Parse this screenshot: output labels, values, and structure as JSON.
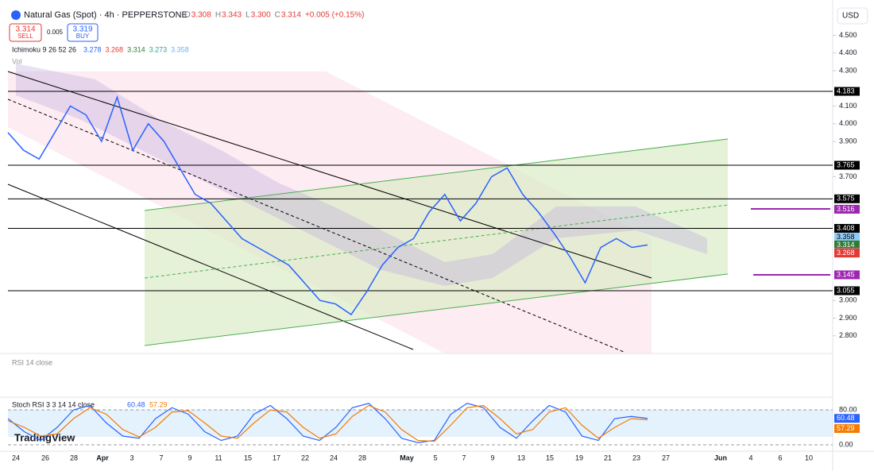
{
  "header": {
    "symbol": "Natural Gas (Spot) · 4h · PEPPERSTONE",
    "ohlc": [
      {
        "k": "O",
        "v": "3.308"
      },
      {
        "k": "H",
        "v": "3.343"
      },
      {
        "k": "L",
        "v": "3.300"
      },
      {
        "k": "C",
        "v": "3.314"
      }
    ],
    "change": "+0.005 (+0.15%)",
    "sell": {
      "price": "3.314",
      "label": "SELL"
    },
    "spread": "0.005",
    "buy": {
      "price": "3.319",
      "label": "BUY"
    },
    "ichimoku": {
      "name": "Ichimoku 9 26 52 26",
      "values": [
        {
          "text": "3.278",
          "color": "#2962ff"
        },
        {
          "text": "3.268",
          "color": "#e53935"
        },
        {
          "text": "3.314",
          "color": "#2e7d32"
        },
        {
          "text": "3.273",
          "color": "#26a69a"
        },
        {
          "text": "3.358",
          "color": "#64b5f6"
        }
      ]
    },
    "vol": "Vol",
    "currency": "USD"
  },
  "price_chart": {
    "type": "line",
    "color": "#2962ff",
    "closes": [
      3.95,
      3.85,
      3.8,
      3.95,
      4.1,
      4.05,
      3.9,
      4.15,
      3.85,
      4.0,
      3.9,
      3.75,
      3.6,
      3.55,
      3.45,
      3.35,
      3.3,
      3.25,
      3.2,
      3.1,
      3.0,
      2.98,
      2.92,
      3.05,
      3.2,
      3.3,
      3.35,
      3.5,
      3.6,
      3.45,
      3.55,
      3.7,
      3.75,
      3.6,
      3.5,
      3.38,
      3.25,
      3.1,
      3.3,
      3.35,
      3.3,
      3.314
    ],
    "ylim": [
      2.7,
      4.7
    ],
    "yticks": [
      {
        "value": 4.5,
        "label": "4.500"
      },
      {
        "value": 4.4,
        "label": "4.400"
      },
      {
        "value": 4.3,
        "label": "4.300"
      },
      {
        "value": 4.1,
        "label": "4.100"
      },
      {
        "value": 4.0,
        "label": "4.000"
      },
      {
        "value": 3.9,
        "label": "3.900"
      },
      {
        "value": 3.7,
        "label": "3.700"
      },
      {
        "value": 3.0,
        "label": "3.000"
      },
      {
        "value": 2.9,
        "label": "2.900"
      },
      {
        "value": 2.8,
        "label": "2.800"
      }
    ],
    "levels": [
      {
        "value": 4.183,
        "color": "#000000",
        "line": true
      },
      {
        "value": 3.765,
        "color": "#000000",
        "line": true
      },
      {
        "value": 3.575,
        "color": "#000000",
        "line": true
      },
      {
        "value": 3.516,
        "color": "#9c27b0",
        "line": false
      },
      {
        "value": 3.408,
        "color": "#000000",
        "line": true
      },
      {
        "value": 3.358,
        "color": "#90caf9",
        "line": false
      },
      {
        "value": 3.314,
        "color": "#2e7d32",
        "line": false
      },
      {
        "value": 3.278,
        "color": "#d32f2f",
        "line": false
      },
      {
        "value": 3.273,
        "color": "#888888",
        "line": false
      },
      {
        "value": 3.268,
        "color": "#e53935",
        "line": false
      },
      {
        "value": 3.145,
        "color": "#9c27b0",
        "line": false
      },
      {
        "value": 3.055,
        "color": "#000000",
        "line": true
      }
    ]
  },
  "rsi": "RSI 14 close",
  "stoch": {
    "name": "Stoch RSI 3 3 14 14 close",
    "k_text": "60.48",
    "d_text": "57.29",
    "k": [
      60,
      30,
      10,
      40,
      80,
      90,
      50,
      20,
      15,
      60,
      85,
      70,
      30,
      10,
      20,
      70,
      90,
      60,
      20,
      10,
      40,
      85,
      95,
      60,
      15,
      5,
      10,
      70,
      95,
      85,
      40,
      15,
      55,
      90,
      75,
      20,
      10,
      60,
      65,
      60.48
    ],
    "d": [
      55,
      40,
      20,
      25,
      60,
      85,
      70,
      35,
      18,
      40,
      75,
      78,
      50,
      20,
      15,
      50,
      80,
      75,
      40,
      15,
      25,
      65,
      90,
      75,
      35,
      10,
      8,
      45,
      85,
      90,
      60,
      25,
      35,
      75,
      85,
      45,
      15,
      40,
      60,
      57.29
    ],
    "ylim": [
      0,
      100
    ],
    "yticks": [
      {
        "value": 80,
        "label": "80.00"
      },
      {
        "value": 0,
        "label": "0.00"
      }
    ]
  },
  "dates": [
    "24",
    "26",
    "28",
    "Apr",
    "3",
    "7",
    "9",
    "11",
    "15",
    "17",
    "22",
    "24",
    "28",
    "May",
    "5",
    "7",
    "9",
    "13",
    "15",
    "19",
    "21",
    "23",
    "27",
    "Jun",
    "4",
    "6",
    "10"
  ],
  "logo": "TradingView"
}
